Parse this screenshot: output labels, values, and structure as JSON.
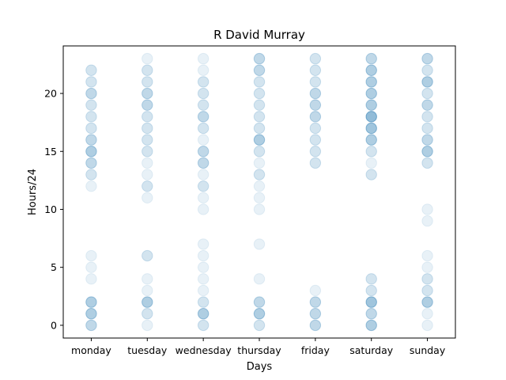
{
  "chart_data": {
    "type": "scatter",
    "title": "R David Murray",
    "xlabel": "Days",
    "ylabel": "Hours/24",
    "categories": [
      "monday",
      "tuesday",
      "wednesday",
      "thursday",
      "friday",
      "saturday",
      "sunday"
    ],
    "ylim": [
      -1.1,
      24.1
    ],
    "yticks": [
      0,
      5,
      10,
      15,
      20
    ],
    "grid": false,
    "marker_color": "#1f77b4",
    "points": [
      {
        "day": "monday",
        "hour": 0,
        "count": 3
      },
      {
        "day": "monday",
        "hour": 1,
        "count": 4
      },
      {
        "day": "monday",
        "hour": 2,
        "count": 4
      },
      {
        "day": "monday",
        "hour": 4,
        "count": 1
      },
      {
        "day": "monday",
        "hour": 5,
        "count": 1
      },
      {
        "day": "monday",
        "hour": 6,
        "count": 1
      },
      {
        "day": "monday",
        "hour": 12,
        "count": 1
      },
      {
        "day": "monday",
        "hour": 13,
        "count": 2
      },
      {
        "day": "monday",
        "hour": 14,
        "count": 3
      },
      {
        "day": "monday",
        "hour": 15,
        "count": 4
      },
      {
        "day": "monday",
        "hour": 16,
        "count": 3
      },
      {
        "day": "monday",
        "hour": 17,
        "count": 2
      },
      {
        "day": "monday",
        "hour": 18,
        "count": 2
      },
      {
        "day": "monday",
        "hour": 19,
        "count": 2
      },
      {
        "day": "monday",
        "hour": 20,
        "count": 3
      },
      {
        "day": "monday",
        "hour": 21,
        "count": 2
      },
      {
        "day": "monday",
        "hour": 22,
        "count": 2
      },
      {
        "day": "tuesday",
        "hour": 0,
        "count": 1
      },
      {
        "day": "tuesday",
        "hour": 1,
        "count": 2
      },
      {
        "day": "tuesday",
        "hour": 2,
        "count": 4
      },
      {
        "day": "tuesday",
        "hour": 3,
        "count": 1
      },
      {
        "day": "tuesday",
        "hour": 4,
        "count": 1
      },
      {
        "day": "tuesday",
        "hour": 6,
        "count": 2
      },
      {
        "day": "tuesday",
        "hour": 11,
        "count": 1
      },
      {
        "day": "tuesday",
        "hour": 12,
        "count": 2
      },
      {
        "day": "tuesday",
        "hour": 13,
        "count": 1
      },
      {
        "day": "tuesday",
        "hour": 14,
        "count": 1
      },
      {
        "day": "tuesday",
        "hour": 15,
        "count": 2
      },
      {
        "day": "tuesday",
        "hour": 16,
        "count": 2
      },
      {
        "day": "tuesday",
        "hour": 17,
        "count": 2
      },
      {
        "day": "tuesday",
        "hour": 18,
        "count": 2
      },
      {
        "day": "tuesday",
        "hour": 19,
        "count": 3
      },
      {
        "day": "tuesday",
        "hour": 20,
        "count": 3
      },
      {
        "day": "tuesday",
        "hour": 21,
        "count": 2
      },
      {
        "day": "tuesday",
        "hour": 22,
        "count": 2
      },
      {
        "day": "tuesday",
        "hour": 23,
        "count": 1
      },
      {
        "day": "wednesday",
        "hour": 0,
        "count": 2
      },
      {
        "day": "wednesday",
        "hour": 1,
        "count": 4
      },
      {
        "day": "wednesday",
        "hour": 2,
        "count": 2
      },
      {
        "day": "wednesday",
        "hour": 3,
        "count": 1
      },
      {
        "day": "wednesday",
        "hour": 4,
        "count": 1
      },
      {
        "day": "wednesday",
        "hour": 5,
        "count": 1
      },
      {
        "day": "wednesday",
        "hour": 6,
        "count": 1
      },
      {
        "day": "wednesday",
        "hour": 7,
        "count": 1
      },
      {
        "day": "wednesday",
        "hour": 10,
        "count": 1
      },
      {
        "day": "wednesday",
        "hour": 11,
        "count": 1
      },
      {
        "day": "wednesday",
        "hour": 12,
        "count": 2
      },
      {
        "day": "wednesday",
        "hour": 13,
        "count": 1
      },
      {
        "day": "wednesday",
        "hour": 14,
        "count": 3
      },
      {
        "day": "wednesday",
        "hour": 15,
        "count": 3
      },
      {
        "day": "wednesday",
        "hour": 16,
        "count": 1
      },
      {
        "day": "wednesday",
        "hour": 17,
        "count": 2
      },
      {
        "day": "wednesday",
        "hour": 18,
        "count": 3
      },
      {
        "day": "wednesday",
        "hour": 19,
        "count": 2
      },
      {
        "day": "wednesday",
        "hour": 20,
        "count": 2
      },
      {
        "day": "wednesday",
        "hour": 21,
        "count": 2
      },
      {
        "day": "wednesday",
        "hour": 22,
        "count": 1
      },
      {
        "day": "wednesday",
        "hour": 23,
        "count": 1
      },
      {
        "day": "thursday",
        "hour": 0,
        "count": 2
      },
      {
        "day": "thursday",
        "hour": 1,
        "count": 4
      },
      {
        "day": "thursday",
        "hour": 2,
        "count": 3
      },
      {
        "day": "thursday",
        "hour": 4,
        "count": 1
      },
      {
        "day": "thursday",
        "hour": 7,
        "count": 1
      },
      {
        "day": "thursday",
        "hour": 10,
        "count": 1
      },
      {
        "day": "thursday",
        "hour": 11,
        "count": 1
      },
      {
        "day": "thursday",
        "hour": 12,
        "count": 1
      },
      {
        "day": "thursday",
        "hour": 13,
        "count": 2
      },
      {
        "day": "thursday",
        "hour": 14,
        "count": 1
      },
      {
        "day": "thursday",
        "hour": 15,
        "count": 2
      },
      {
        "day": "thursday",
        "hour": 16,
        "count": 4
      },
      {
        "day": "thursday",
        "hour": 17,
        "count": 2
      },
      {
        "day": "thursday",
        "hour": 18,
        "count": 2
      },
      {
        "day": "thursday",
        "hour": 19,
        "count": 2
      },
      {
        "day": "thursday",
        "hour": 20,
        "count": 2
      },
      {
        "day": "thursday",
        "hour": 21,
        "count": 2
      },
      {
        "day": "thursday",
        "hour": 22,
        "count": 3
      },
      {
        "day": "thursday",
        "hour": 23,
        "count": 3
      },
      {
        "day": "friday",
        "hour": 0,
        "count": 3
      },
      {
        "day": "friday",
        "hour": 1,
        "count": 3
      },
      {
        "day": "friday",
        "hour": 2,
        "count": 3
      },
      {
        "day": "friday",
        "hour": 3,
        "count": 1
      },
      {
        "day": "friday",
        "hour": 14,
        "count": 2
      },
      {
        "day": "friday",
        "hour": 15,
        "count": 2
      },
      {
        "day": "friday",
        "hour": 16,
        "count": 2
      },
      {
        "day": "friday",
        "hour": 17,
        "count": 2
      },
      {
        "day": "friday",
        "hour": 18,
        "count": 3
      },
      {
        "day": "friday",
        "hour": 19,
        "count": 3
      },
      {
        "day": "friday",
        "hour": 20,
        "count": 3
      },
      {
        "day": "friday",
        "hour": 21,
        "count": 2
      },
      {
        "day": "friday",
        "hour": 22,
        "count": 2
      },
      {
        "day": "friday",
        "hour": 23,
        "count": 2
      },
      {
        "day": "saturday",
        "hour": 0,
        "count": 4
      },
      {
        "day": "saturday",
        "hour": 1,
        "count": 3
      },
      {
        "day": "saturday",
        "hour": 2,
        "count": 5
      },
      {
        "day": "saturday",
        "hour": 3,
        "count": 2
      },
      {
        "day": "saturday",
        "hour": 4,
        "count": 2
      },
      {
        "day": "saturday",
        "hour": 13,
        "count": 2
      },
      {
        "day": "saturday",
        "hour": 14,
        "count": 1
      },
      {
        "day": "saturday",
        "hour": 15,
        "count": 2
      },
      {
        "day": "saturday",
        "hour": 16,
        "count": 4
      },
      {
        "day": "saturday",
        "hour": 17,
        "count": 5
      },
      {
        "day": "saturday",
        "hour": 18,
        "count": 6
      },
      {
        "day": "saturday",
        "hour": 19,
        "count": 4
      },
      {
        "day": "saturday",
        "hour": 20,
        "count": 4
      },
      {
        "day": "saturday",
        "hour": 21,
        "count": 4
      },
      {
        "day": "saturday",
        "hour": 22,
        "count": 4
      },
      {
        "day": "saturday",
        "hour": 23,
        "count": 3
      },
      {
        "day": "sunday",
        "hour": 0,
        "count": 1
      },
      {
        "day": "sunday",
        "hour": 1,
        "count": 1
      },
      {
        "day": "sunday",
        "hour": 2,
        "count": 4
      },
      {
        "day": "sunday",
        "hour": 3,
        "count": 2
      },
      {
        "day": "sunday",
        "hour": 4,
        "count": 2
      },
      {
        "day": "sunday",
        "hour": 5,
        "count": 1
      },
      {
        "day": "sunday",
        "hour": 6,
        "count": 1
      },
      {
        "day": "sunday",
        "hour": 9,
        "count": 1
      },
      {
        "day": "sunday",
        "hour": 10,
        "count": 1
      },
      {
        "day": "sunday",
        "hour": 14,
        "count": 2
      },
      {
        "day": "sunday",
        "hour": 15,
        "count": 4
      },
      {
        "day": "sunday",
        "hour": 16,
        "count": 3
      },
      {
        "day": "sunday",
        "hour": 17,
        "count": 2
      },
      {
        "day": "sunday",
        "hour": 18,
        "count": 2
      },
      {
        "day": "sunday",
        "hour": 19,
        "count": 3
      },
      {
        "day": "sunday",
        "hour": 20,
        "count": 2
      },
      {
        "day": "sunday",
        "hour": 21,
        "count": 4
      },
      {
        "day": "sunday",
        "hour": 22,
        "count": 2
      },
      {
        "day": "sunday",
        "hour": 23,
        "count": 3
      }
    ]
  }
}
